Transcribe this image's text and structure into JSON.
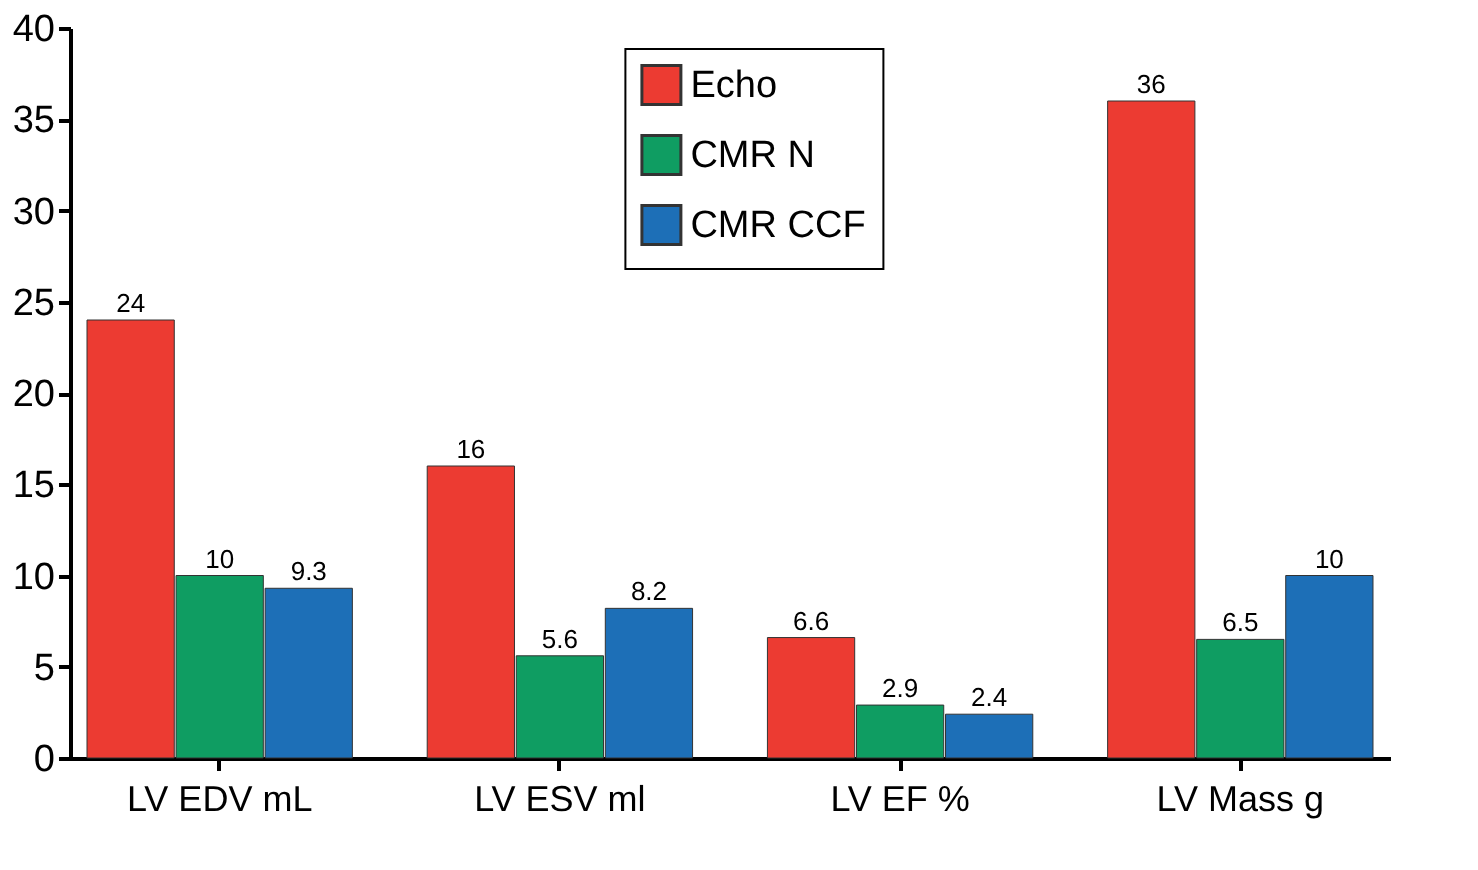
{
  "chart_data": {
    "type": "bar",
    "categories": [
      "LV EDV mL",
      "LV ESV ml",
      "LV EF %",
      "LV Mass g"
    ],
    "series": [
      {
        "name": "Echo",
        "color": "#ec3b32",
        "values": [
          24,
          16,
          6.6,
          36
        ]
      },
      {
        "name": "CMR N",
        "color": "#0f9d62",
        "values": [
          10,
          5.6,
          2.9,
          6.5
        ]
      },
      {
        "name": "CMR CCF",
        "color": "#1d6fb7",
        "values": [
          9.3,
          8.2,
          2.4,
          10
        ]
      }
    ],
    "ylim": [
      0,
      40
    ],
    "yticks": [
      0,
      5,
      10,
      15,
      20,
      25,
      30,
      35,
      40
    ],
    "grid": false,
    "legend": "top",
    "data_labels": true
  }
}
